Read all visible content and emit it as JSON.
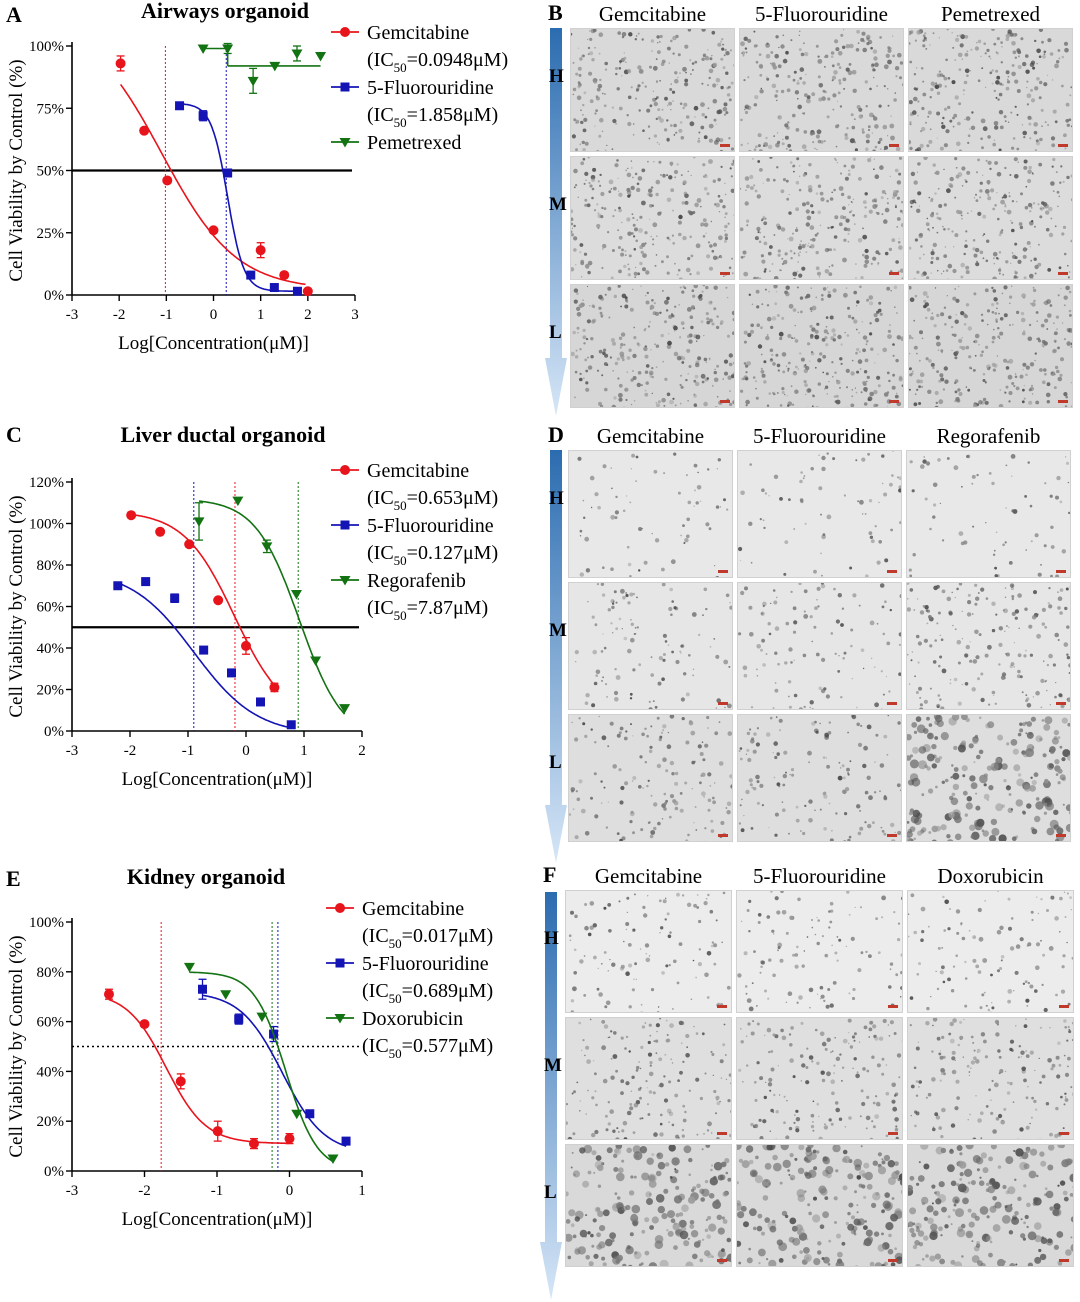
{
  "colors": {
    "gem": "#e8141c",
    "fu": "#1414b4",
    "third": "#137313",
    "axis": "#000000",
    "arrow_top": "#2b6cb0",
    "arrow_bottom": "#d6e6f7"
  },
  "chart_data": [
    {
      "type": "line",
      "letter": "A",
      "title": "Airways organoid",
      "xlabel": "Log[Concentration(μM)]",
      "ylabel": "Cell Viability by Control (%)",
      "xlim": [
        -3,
        3
      ],
      "ylim": [
        0,
        100
      ],
      "xticks": [
        "-3",
        "-2",
        "-1",
        "0",
        "1",
        "2",
        "3"
      ],
      "yticks": [
        {
          "v": 0,
          "t": "0%"
        },
        {
          "v": 25,
          "t": "25%"
        },
        {
          "v": 50,
          "t": "50%"
        },
        {
          "v": 75,
          "t": "75%"
        },
        {
          "v": 100,
          "t": "100%"
        }
      ],
      "hline": 50,
      "vlines": [
        {
          "x": -1.02,
          "series": 0
        },
        {
          "x": 0.27,
          "series": 1
        }
      ],
      "series": [
        {
          "name": "Gemcitabine",
          "ic50": "0.0948μM",
          "marker": "circle",
          "x": [
            -1.97,
            -1.47,
            -0.98,
            0.0,
            1.0,
            1.5,
            2.0
          ],
          "y": [
            93,
            66,
            46,
            26,
            18,
            8,
            1.5
          ],
          "err": [
            3,
            0,
            0,
            0,
            3,
            1,
            0
          ],
          "curve": {
            "top": 112,
            "bottom": 2,
            "logec50": -1.1,
            "hill": -0.55,
            "from": -1.97,
            "to": 1.95
          }
        },
        {
          "name": "5-Fluorouridine",
          "ic50": "1.858μM",
          "marker": "square",
          "x": [
            -0.72,
            -0.22,
            0.3,
            0.79,
            1.29,
            1.78
          ],
          "y": [
            76,
            72,
            49,
            8,
            3,
            1.5
          ],
          "err": [
            0,
            2,
            0,
            0,
            0,
            0
          ],
          "curve": {
            "top": 77,
            "bottom": 1.5,
            "logec50": 0.3,
            "hill": -2.5,
            "from": -0.72,
            "to": 1.78
          }
        },
        {
          "name": "Pemetrexed",
          "marker": "triangle",
          "x": [
            -0.22,
            0.3,
            0.84,
            1.3,
            1.77,
            2.27
          ],
          "y": [
            99,
            99,
            86,
            92,
            97,
            96
          ],
          "err": [
            0,
            2,
            5,
            0,
            3,
            0
          ],
          "segments": [
            [
              -0.22,
              0.3,
              99
            ],
            [
              0.3,
              2.27,
              92
            ]
          ]
        }
      ]
    },
    {
      "type": "line",
      "letter": "C",
      "title": "Liver ductal organoid",
      "xlabel": "Log[Concentration(μM)]",
      "ylabel": "Cell Viability by Control (%)",
      "xlim": [
        -3,
        2
      ],
      "ylim": [
        0,
        120
      ],
      "xticks": [
        "-3",
        "-2",
        "-1",
        "0",
        "1",
        "2"
      ],
      "yticks": [
        {
          "v": 0,
          "t": "0%"
        },
        {
          "v": 20,
          "t": "20%"
        },
        {
          "v": 40,
          "t": "40%"
        },
        {
          "v": 60,
          "t": "60%"
        },
        {
          "v": 80,
          "t": "80%"
        },
        {
          "v": 100,
          "t": "100%"
        },
        {
          "v": 120,
          "t": "120%"
        }
      ],
      "hline": 50,
      "vlines": [
        {
          "x": -0.9,
          "series": 1
        },
        {
          "x": -0.19,
          "series": 0
        },
        {
          "x": 0.9,
          "series": 2
        }
      ],
      "series": [
        {
          "name": "Gemcitabine",
          "ic50": "0.653μM",
          "marker": "circle",
          "x": [
            -1.98,
            -1.48,
            -0.98,
            -0.48,
            0.0,
            0.49
          ],
          "y": [
            104,
            96,
            90,
            63,
            41,
            21
          ],
          "err": [
            0,
            0,
            0,
            0,
            4,
            2
          ],
          "curve": {
            "top": 106,
            "bottom": 5,
            "logec50": -0.2,
            "hill": -1.0,
            "from": -1.98,
            "to": 0.49
          }
        },
        {
          "name": "5-Fluorouridine",
          "ic50": "0.127μM",
          "marker": "square",
          "x": [
            -2.21,
            -1.73,
            -1.23,
            -0.73,
            -0.25,
            0.25,
            0.78
          ],
          "y": [
            70,
            72,
            64,
            39,
            28,
            14,
            3
          ],
          "err": [
            0,
            0,
            2,
            0,
            0,
            0,
            0
          ],
          "curve": {
            "top": 78,
            "bottom": -2,
            "logec50": -0.9,
            "hill": -0.8,
            "from": -2.21,
            "to": 0.78
          }
        },
        {
          "name": "Regorafenib",
          "ic50": "7.87μM",
          "marker": "triangle",
          "x": [
            -0.81,
            -0.14,
            0.36,
            0.87,
            1.2,
            1.7
          ],
          "y": [
            101,
            111,
            89,
            66,
            34,
            11
          ],
          "err": [
            9,
            0,
            3,
            0,
            0,
            0
          ],
          "curve": {
            "top": 112,
            "bottom": -5,
            "logec50": 0.92,
            "hill": -1.15,
            "from": -0.81,
            "to": 1.7
          }
        }
      ]
    },
    {
      "type": "line",
      "letter": "E",
      "title": "Kidney organoid",
      "xlabel": "Log[Concentration(μM)]",
      "ylabel": "Cell Viability by Control (%)",
      "xlim": [
        -3,
        1
      ],
      "ylim": [
        0,
        100
      ],
      "xticks": [
        "-3",
        "-2",
        "-1",
        "0",
        "1"
      ],
      "yticks": [
        {
          "v": 0,
          "t": "0%"
        },
        {
          "v": 20,
          "t": "20%"
        },
        {
          "v": 40,
          "t": "40%"
        },
        {
          "v": 60,
          "t": "60%"
        },
        {
          "v": 80,
          "t": "80%"
        },
        {
          "v": 100,
          "t": "100%"
        }
      ],
      "hline": 50,
      "hline_dotted": true,
      "vlines": [
        {
          "x": -1.77,
          "series": 0
        },
        {
          "x": -0.24,
          "series": 2
        },
        {
          "x": -0.16,
          "series": 1
        }
      ],
      "series": [
        {
          "name": "Gemcitabine",
          "ic50": "0.017μM",
          "marker": "circle",
          "x": [
            -2.49,
            -2.0,
            -1.5,
            -0.99,
            -0.49,
            0.0
          ],
          "y": [
            71,
            59,
            36,
            16,
            11,
            13
          ],
          "err": [
            2,
            0,
            3,
            4,
            2,
            2
          ],
          "curve": {
            "top": 72,
            "bottom": 11,
            "logec50": -1.7,
            "hill": -1.6,
            "from": -2.49,
            "to": 0.0
          }
        },
        {
          "name": "5-Fluorouridine",
          "ic50": "0.689μM",
          "marker": "square",
          "x": [
            -1.2,
            -0.7,
            -0.22,
            0.28,
            0.78
          ],
          "y": [
            73,
            61,
            55,
            23,
            12
          ],
          "err": [
            4,
            2,
            3,
            0,
            0
          ],
          "curve": {
            "top": 72,
            "bottom": 7,
            "logec50": -0.1,
            "hill": -1.5,
            "from": -1.2,
            "to": 0.78
          }
        },
        {
          "name": "Doxorubicin",
          "ic50": "0.577μM",
          "marker": "triangle",
          "x": [
            -1.38,
            -0.88,
            -0.38,
            0.1,
            0.6
          ],
          "y": [
            82,
            71,
            62,
            23,
            5
          ],
          "err": [
            0,
            0,
            0,
            0,
            0
          ],
          "curve": {
            "top": 80,
            "bottom": 0,
            "logec50": -0.05,
            "hill": -2.0,
            "from": -1.38,
            "to": 0.6
          }
        }
      ]
    }
  ],
  "image_panels": [
    {
      "letter": "B",
      "columns": [
        "Gemcitabine",
        "5-Fluorouridine",
        "Pemetrexed"
      ],
      "rows": [
        "H",
        "M",
        "L"
      ]
    },
    {
      "letter": "D",
      "columns": [
        "Gemcitabine",
        "5-Fluorouridine",
        "Regorafenib"
      ],
      "rows": [
        "H",
        "M",
        "L"
      ]
    },
    {
      "letter": "F",
      "columns": [
        "Gemcitabine",
        "5-Fluorouridine",
        "Doxorubicin"
      ],
      "rows": [
        "H",
        "M",
        "L"
      ]
    }
  ]
}
